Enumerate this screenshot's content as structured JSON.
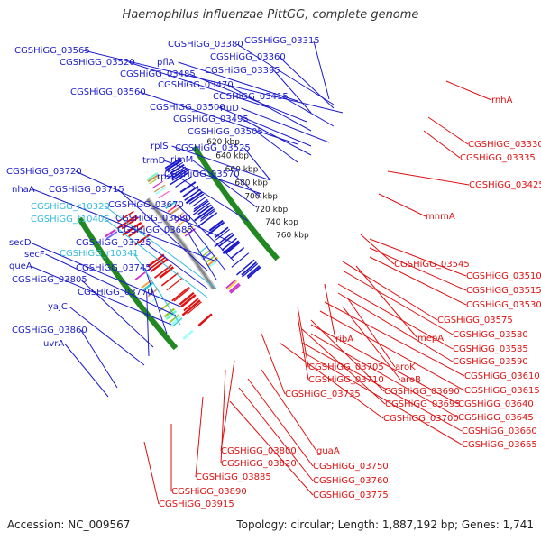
{
  "title": "Haemophilus influenzae PittGG, complete genome",
  "footer": {
    "accession": "Accession: NC_009567",
    "summary": "Topology: circular; Length: 1,887,192 bp; Genes: 1,741"
  },
  "colors": {
    "forward": "#1a1acc",
    "reverse": "#e01010",
    "rna": "#33bbdd",
    "backbone": "#888888",
    "tick": "#228822"
  },
  "scale_labels": [
    "620 kbp",
    "640 kbp",
    "660 kbp",
    "680 kbp",
    "700 kbp",
    "720 kbp",
    "740 kbp",
    "760 kbp"
  ],
  "forward_labels": [
    "CGSHiGG_03380",
    "CGSHiGG_03315",
    "CGSHiGG_03565",
    "CGSHiGG_03360",
    "CGSHiGG_03520",
    "pflA",
    "CGSHiGG_03395",
    "CGSHiGG_03485",
    "CGSHiGG_03470",
    "CGSHiGG_03560",
    "CGSHiGG_03415",
    "CGSHiGG_03500",
    "rluD",
    "CGSHiGG_03495",
    "CGSHiGG_03505",
    "rplS",
    "CGSHiGG_03525",
    "trmD",
    "CGSHiGG_03570",
    "rimM",
    "CGSHiGG_03720",
    "rpsP",
    "nhaA",
    "CGSHiGG_03715",
    "CGSHiGG_03670",
    "CGSHiGG_03680",
    "CGSHiGG_03685",
    "CGSHiGG_03725",
    "secD",
    "secF",
    "queA",
    "CGSHiGG_03745",
    "CGSHiGG_03805",
    "CGSHiGG_03770",
    "yajC",
    "CGSHiGG_03860",
    "uvrA"
  ],
  "rna_labels": [
    "CGSHiGG_r10329",
    "CGSHiGG_t10405",
    "CGSHiGG_r10341"
  ],
  "reverse_labels": [
    "rnhA",
    "CGSHiGG_03330",
    "CGSHiGG_03335",
    "CGSHiGG_03425",
    "mnmA",
    "CGSHiGG_03545",
    "CGSHiGG_03510",
    "CGSHiGG_03515",
    "CGSHiGG_03530",
    "CGSHiGG_03575",
    "mepA",
    "CGSHiGG_03580",
    "ribA",
    "CGSHiGG_03585",
    "CGSHiGG_03590",
    "aroK",
    "CGSHiGG_03705",
    "CGSHiGG_03710",
    "aroB",
    "CGSHiGG_03610",
    "CGSHiGG_03690",
    "CGSHiGG_03615",
    "CGSHiGG_03735",
    "CGSHiGG_03695",
    "CGSHiGG_03640",
    "CGSHiGG_03645",
    "CGSHiGG_03700",
    "CGSHiGG_03660",
    "CGSHiGG_03665",
    "CGSHiGG_03800",
    "guaA",
    "CGSHiGG_03820",
    "CGSHiGG_03750",
    "CGSHiGG_03885",
    "CGSHiGG_03760",
    "CGSHiGG_03890",
    "CGSHiGG_03775",
    "CGSHiGG_03915"
  ]
}
